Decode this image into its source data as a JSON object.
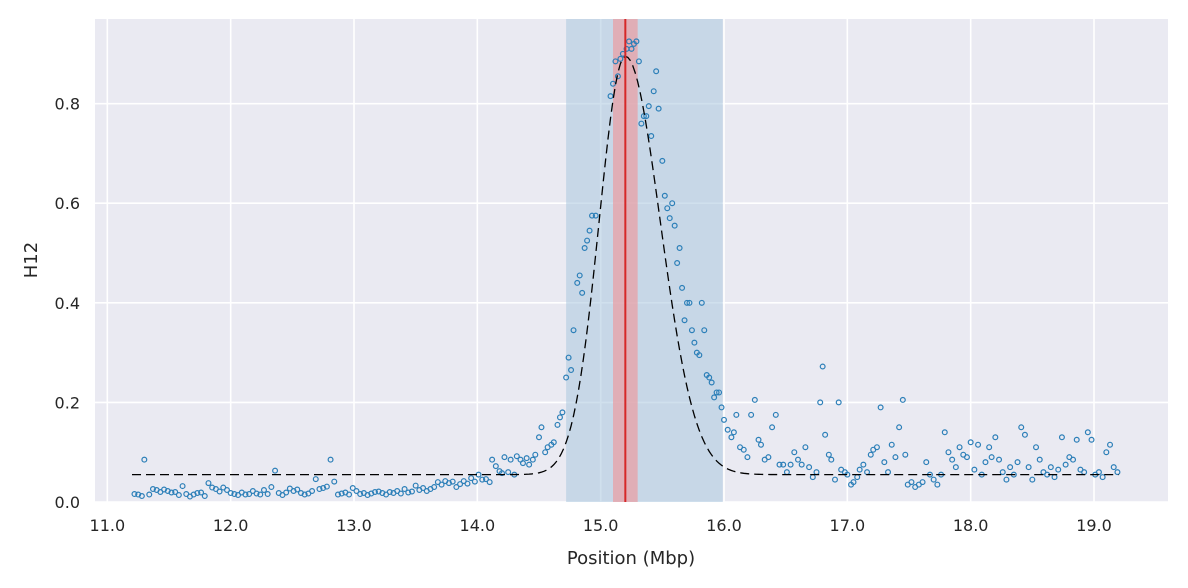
{
  "chart_data": {
    "type": "scatter",
    "xlabel": "Position (Mbp)",
    "ylabel": "H12",
    "xlim": [
      10.9,
      19.6
    ],
    "ylim": [
      0.0,
      0.97
    ],
    "xticks": [
      "11.0",
      "12.0",
      "13.0",
      "14.0",
      "15.0",
      "16.0",
      "17.0",
      "18.0",
      "19.0"
    ],
    "yticks": [
      "0.0",
      "0.2",
      "0.4",
      "0.6",
      "0.8"
    ],
    "grid": true,
    "colors": {
      "background": "#eaeaf2",
      "grid": "#ffffff",
      "points": "#2c7fb8",
      "fit": "#000000",
      "peak": "#d62728",
      "outer_band": "#a9c6de",
      "inner_band": "#e8a0a5"
    },
    "fit": {
      "style": "dashed",
      "baseline": 0.055,
      "peak_height": 0.895,
      "peak_position": 15.2,
      "left_width": 0.3,
      "right_width": 0.4
    },
    "regions": [
      {
        "kind": "outer_span",
        "x0": 14.72,
        "x1": 15.99
      },
      {
        "kind": "inner_span",
        "x0": 15.1,
        "x1": 15.3
      },
      {
        "kind": "peak_line",
        "x": 15.2
      }
    ],
    "points": [
      [
        11.22,
        0.016
      ],
      [
        11.25,
        0.015
      ],
      [
        11.28,
        0.012
      ],
      [
        11.3,
        0.085
      ],
      [
        11.34,
        0.015
      ],
      [
        11.37,
        0.026
      ],
      [
        11.4,
        0.024
      ],
      [
        11.43,
        0.02
      ],
      [
        11.46,
        0.025
      ],
      [
        11.49,
        0.022
      ],
      [
        11.52,
        0.019
      ],
      [
        11.55,
        0.02
      ],
      [
        11.58,
        0.014
      ],
      [
        11.61,
        0.032
      ],
      [
        11.64,
        0.016
      ],
      [
        11.67,
        0.011
      ],
      [
        11.7,
        0.015
      ],
      [
        11.73,
        0.018
      ],
      [
        11.76,
        0.019
      ],
      [
        11.79,
        0.012
      ],
      [
        11.82,
        0.038
      ],
      [
        11.85,
        0.029
      ],
      [
        11.88,
        0.026
      ],
      [
        11.91,
        0.021
      ],
      [
        11.94,
        0.029
      ],
      [
        11.97,
        0.024
      ],
      [
        12.0,
        0.018
      ],
      [
        12.03,
        0.016
      ],
      [
        12.06,
        0.014
      ],
      [
        12.09,
        0.019
      ],
      [
        12.12,
        0.015
      ],
      [
        12.15,
        0.016
      ],
      [
        12.18,
        0.022
      ],
      [
        12.21,
        0.017
      ],
      [
        12.24,
        0.015
      ],
      [
        12.27,
        0.024
      ],
      [
        12.3,
        0.016
      ],
      [
        12.33,
        0.03
      ],
      [
        12.36,
        0.063
      ],
      [
        12.39,
        0.018
      ],
      [
        12.42,
        0.014
      ],
      [
        12.45,
        0.019
      ],
      [
        12.48,
        0.027
      ],
      [
        12.51,
        0.022
      ],
      [
        12.54,
        0.025
      ],
      [
        12.57,
        0.018
      ],
      [
        12.6,
        0.015
      ],
      [
        12.63,
        0.017
      ],
      [
        12.66,
        0.022
      ],
      [
        12.69,
        0.046
      ],
      [
        12.72,
        0.026
      ],
      [
        12.75,
        0.028
      ],
      [
        12.78,
        0.031
      ],
      [
        12.81,
        0.085
      ],
      [
        12.84,
        0.041
      ],
      [
        12.87,
        0.015
      ],
      [
        12.9,
        0.017
      ],
      [
        12.93,
        0.019
      ],
      [
        12.96,
        0.015
      ],
      [
        12.99,
        0.028
      ],
      [
        13.02,
        0.022
      ],
      [
        13.05,
        0.016
      ],
      [
        13.08,
        0.018
      ],
      [
        13.11,
        0.014
      ],
      [
        13.14,
        0.017
      ],
      [
        13.17,
        0.02
      ],
      [
        13.2,
        0.021
      ],
      [
        13.23,
        0.018
      ],
      [
        13.26,
        0.015
      ],
      [
        13.29,
        0.02
      ],
      [
        13.32,
        0.018
      ],
      [
        13.35,
        0.022
      ],
      [
        13.38,
        0.017
      ],
      [
        13.41,
        0.026
      ],
      [
        13.44,
        0.019
      ],
      [
        13.47,
        0.021
      ],
      [
        13.5,
        0.033
      ],
      [
        13.53,
        0.024
      ],
      [
        13.56,
        0.028
      ],
      [
        13.59,
        0.022
      ],
      [
        13.62,
        0.026
      ],
      [
        13.65,
        0.03
      ],
      [
        13.68,
        0.04
      ],
      [
        13.71,
        0.035
      ],
      [
        13.74,
        0.042
      ],
      [
        13.77,
        0.038
      ],
      [
        13.8,
        0.041
      ],
      [
        13.83,
        0.03
      ],
      [
        13.86,
        0.036
      ],
      [
        13.89,
        0.042
      ],
      [
        13.92,
        0.037
      ],
      [
        13.95,
        0.048
      ],
      [
        13.98,
        0.041
      ],
      [
        14.01,
        0.055
      ],
      [
        14.04,
        0.045
      ],
      [
        14.07,
        0.046
      ],
      [
        14.1,
        0.04
      ],
      [
        14.12,
        0.085
      ],
      [
        14.15,
        0.072
      ],
      [
        14.18,
        0.062
      ],
      [
        14.2,
        0.058
      ],
      [
        14.22,
        0.09
      ],
      [
        14.25,
        0.06
      ],
      [
        14.27,
        0.085
      ],
      [
        14.3,
        0.055
      ],
      [
        14.32,
        0.092
      ],
      [
        14.35,
        0.085
      ],
      [
        14.37,
        0.078
      ],
      [
        14.4,
        0.088
      ],
      [
        14.42,
        0.075
      ],
      [
        14.45,
        0.085
      ],
      [
        14.47,
        0.095
      ],
      [
        14.5,
        0.13
      ],
      [
        14.52,
        0.15
      ],
      [
        14.55,
        0.1
      ],
      [
        14.57,
        0.11
      ],
      [
        14.6,
        0.115
      ],
      [
        14.62,
        0.12
      ],
      [
        14.65,
        0.155
      ],
      [
        14.67,
        0.17
      ],
      [
        14.69,
        0.18
      ],
      [
        14.72,
        0.25
      ],
      [
        14.74,
        0.29
      ],
      [
        14.76,
        0.265
      ],
      [
        14.78,
        0.345
      ],
      [
        14.81,
        0.44
      ],
      [
        14.83,
        0.455
      ],
      [
        14.85,
        0.42
      ],
      [
        14.87,
        0.51
      ],
      [
        14.89,
        0.525
      ],
      [
        14.91,
        0.545
      ],
      [
        14.93,
        0.575
      ],
      [
        14.96,
        0.575
      ],
      [
        15.08,
        0.815
      ],
      [
        15.1,
        0.84
      ],
      [
        15.12,
        0.885
      ],
      [
        15.14,
        0.855
      ],
      [
        15.16,
        0.89
      ],
      [
        15.18,
        0.9
      ],
      [
        15.21,
        0.91
      ],
      [
        15.23,
        0.925
      ],
      [
        15.25,
        0.91
      ],
      [
        15.27,
        0.92
      ],
      [
        15.29,
        0.925
      ],
      [
        15.31,
        0.885
      ],
      [
        15.33,
        0.76
      ],
      [
        15.35,
        0.775
      ],
      [
        15.37,
        0.775
      ],
      [
        15.39,
        0.795
      ],
      [
        15.41,
        0.735
      ],
      [
        15.43,
        0.825
      ],
      [
        15.45,
        0.865
      ],
      [
        15.47,
        0.79
      ],
      [
        15.5,
        0.685
      ],
      [
        15.52,
        0.615
      ],
      [
        15.54,
        0.59
      ],
      [
        15.56,
        0.57
      ],
      [
        15.58,
        0.6
      ],
      [
        15.6,
        0.555
      ],
      [
        15.62,
        0.48
      ],
      [
        15.64,
        0.51
      ],
      [
        15.66,
        0.43
      ],
      [
        15.68,
        0.365
      ],
      [
        15.7,
        0.4
      ],
      [
        15.72,
        0.4
      ],
      [
        15.74,
        0.345
      ],
      [
        15.76,
        0.32
      ],
      [
        15.78,
        0.3
      ],
      [
        15.8,
        0.295
      ],
      [
        15.82,
        0.4
      ],
      [
        15.84,
        0.345
      ],
      [
        15.86,
        0.255
      ],
      [
        15.88,
        0.25
      ],
      [
        15.9,
        0.24
      ],
      [
        15.92,
        0.21
      ],
      [
        15.94,
        0.22
      ],
      [
        15.96,
        0.22
      ],
      [
        15.98,
        0.19
      ],
      [
        16.0,
        0.165
      ],
      [
        16.03,
        0.145
      ],
      [
        16.06,
        0.13
      ],
      [
        16.08,
        0.14
      ],
      [
        16.1,
        0.175
      ],
      [
        16.13,
        0.11
      ],
      [
        16.16,
        0.105
      ],
      [
        16.19,
        0.09
      ],
      [
        16.22,
        0.175
      ],
      [
        16.25,
        0.205
      ],
      [
        16.28,
        0.125
      ],
      [
        16.3,
        0.115
      ],
      [
        16.33,
        0.085
      ],
      [
        16.36,
        0.09
      ],
      [
        16.39,
        0.15
      ],
      [
        16.42,
        0.175
      ],
      [
        16.45,
        0.075
      ],
      [
        16.48,
        0.075
      ],
      [
        16.51,
        0.06
      ],
      [
        16.54,
        0.075
      ],
      [
        16.57,
        0.1
      ],
      [
        16.6,
        0.085
      ],
      [
        16.63,
        0.075
      ],
      [
        16.66,
        0.11
      ],
      [
        16.69,
        0.07
      ],
      [
        16.72,
        0.05
      ],
      [
        16.75,
        0.06
      ],
      [
        16.78,
        0.2
      ],
      [
        16.8,
        0.272
      ],
      [
        16.82,
        0.135
      ],
      [
        16.85,
        0.095
      ],
      [
        16.87,
        0.085
      ],
      [
        16.9,
        0.045
      ],
      [
        16.93,
        0.2
      ],
      [
        16.95,
        0.065
      ],
      [
        16.98,
        0.06
      ],
      [
        17.0,
        0.055
      ],
      [
        17.03,
        0.035
      ],
      [
        17.05,
        0.04
      ],
      [
        17.08,
        0.05
      ],
      [
        17.1,
        0.065
      ],
      [
        17.13,
        0.075
      ],
      [
        17.16,
        0.06
      ],
      [
        17.19,
        0.095
      ],
      [
        17.21,
        0.105
      ],
      [
        17.24,
        0.11
      ],
      [
        17.27,
        0.19
      ],
      [
        17.3,
        0.08
      ],
      [
        17.33,
        0.06
      ],
      [
        17.36,
        0.115
      ],
      [
        17.39,
        0.09
      ],
      [
        17.42,
        0.15
      ],
      [
        17.45,
        0.205
      ],
      [
        17.47,
        0.095
      ],
      [
        17.49,
        0.035
      ],
      [
        17.52,
        0.04
      ],
      [
        17.55,
        0.03
      ],
      [
        17.58,
        0.035
      ],
      [
        17.61,
        0.04
      ],
      [
        17.64,
        0.08
      ],
      [
        17.67,
        0.055
      ],
      [
        17.7,
        0.045
      ],
      [
        17.73,
        0.035
      ],
      [
        17.76,
        0.055
      ],
      [
        17.79,
        0.14
      ],
      [
        17.82,
        0.1
      ],
      [
        17.85,
        0.085
      ],
      [
        17.88,
        0.07
      ],
      [
        17.91,
        0.11
      ],
      [
        17.94,
        0.095
      ],
      [
        17.97,
        0.09
      ],
      [
        18.0,
        0.12
      ],
      [
        18.03,
        0.065
      ],
      [
        18.06,
        0.115
      ],
      [
        18.09,
        0.055
      ],
      [
        18.12,
        0.08
      ],
      [
        18.15,
        0.11
      ],
      [
        18.17,
        0.09
      ],
      [
        18.2,
        0.13
      ],
      [
        18.23,
        0.085
      ],
      [
        18.26,
        0.06
      ],
      [
        18.29,
        0.045
      ],
      [
        18.32,
        0.07
      ],
      [
        18.35,
        0.055
      ],
      [
        18.38,
        0.08
      ],
      [
        18.41,
        0.15
      ],
      [
        18.44,
        0.135
      ],
      [
        18.47,
        0.07
      ],
      [
        18.5,
        0.045
      ],
      [
        18.53,
        0.11
      ],
      [
        18.56,
        0.085
      ],
      [
        18.59,
        0.06
      ],
      [
        18.62,
        0.055
      ],
      [
        18.65,
        0.07
      ],
      [
        18.68,
        0.05
      ],
      [
        18.71,
        0.065
      ],
      [
        18.74,
        0.13
      ],
      [
        18.77,
        0.075
      ],
      [
        18.8,
        0.09
      ],
      [
        18.83,
        0.085
      ],
      [
        18.86,
        0.125
      ],
      [
        18.89,
        0.065
      ],
      [
        18.92,
        0.06
      ],
      [
        18.95,
        0.14
      ],
      [
        18.98,
        0.125
      ],
      [
        19.01,
        0.055
      ],
      [
        19.04,
        0.06
      ],
      [
        19.07,
        0.05
      ],
      [
        19.1,
        0.1
      ],
      [
        19.13,
        0.115
      ],
      [
        19.16,
        0.07
      ],
      [
        19.19,
        0.06
      ]
    ]
  }
}
